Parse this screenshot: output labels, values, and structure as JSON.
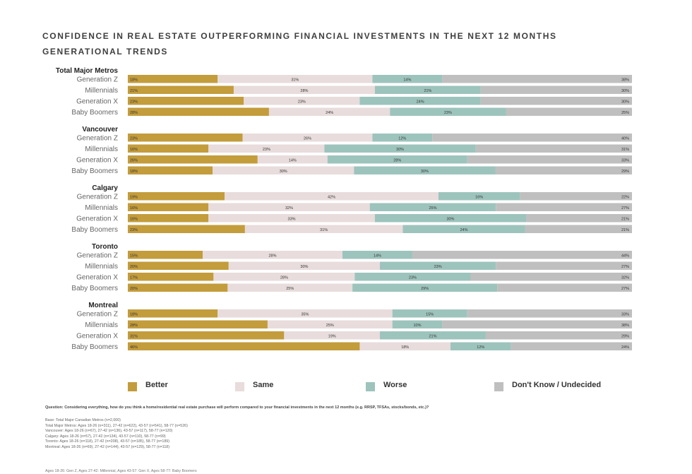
{
  "title": {
    "line1": "CONFIDENCE IN REAL ESTATE OUTPERFORMING FINANCIAL INVESTMENTS IN THE NEXT 12 MONTHS",
    "line2": "GENERATIONAL TRENDS"
  },
  "colors": {
    "better": "#c39c3c",
    "same": "#e8dcdc",
    "worse": "#9dc4bc",
    "dont_know": "#bfbfbf"
  },
  "legend": {
    "better": "Better",
    "same": "Same",
    "worse": "Worse",
    "dont_know": "Don't Know / Undecided"
  },
  "chart_data": {
    "type": "bar",
    "orientation": "horizontal",
    "stacked": true,
    "unit": "%",
    "series_names": [
      "Better",
      "Same",
      "Worse",
      "Don't Know / Undecided"
    ],
    "groups": [
      {
        "name": "Total Major Metros",
        "rows": [
          {
            "label": "Generation Z",
            "values": [
              18,
              31,
              14,
              38
            ]
          },
          {
            "label": "Millennials",
            "values": [
              21,
              28,
              21,
              30
            ]
          },
          {
            "label": "Generation X",
            "values": [
              23,
              23,
              24,
              30
            ]
          },
          {
            "label": "Baby Boomers",
            "values": [
              28,
              24,
              23,
              25
            ]
          }
        ]
      },
      {
        "name": "Vancouver",
        "rows": [
          {
            "label": "Generation Z",
            "values": [
              23,
              26,
              12,
              40
            ]
          },
          {
            "label": "Millennials",
            "values": [
              16,
              23,
              30,
              31
            ]
          },
          {
            "label": "Generation X",
            "values": [
              26,
              14,
              28,
              33
            ]
          },
          {
            "label": "Baby Boomers",
            "values": [
              18,
              30,
              30,
              29
            ]
          }
        ]
      },
      {
        "name": "Calgary",
        "rows": [
          {
            "label": "Generation Z",
            "values": [
              19,
              42,
              16,
              22
            ]
          },
          {
            "label": "Millennials",
            "values": [
              16,
              32,
              25,
              27
            ]
          },
          {
            "label": "Generation X",
            "values": [
              16,
              33,
              30,
              21
            ]
          },
          {
            "label": "Baby Boomers",
            "values": [
              23,
              31,
              24,
              21
            ]
          }
        ]
      },
      {
        "name": "Toronto",
        "rows": [
          {
            "label": "Generation Z",
            "values": [
              15,
              28,
              14,
              44
            ]
          },
          {
            "label": "Millennials",
            "values": [
              20,
              30,
              23,
              27
            ]
          },
          {
            "label": "Generation X",
            "values": [
              17,
              28,
              23,
              32
            ]
          },
          {
            "label": "Baby Boomers",
            "values": [
              20,
              25,
              29,
              27
            ]
          }
        ]
      },
      {
        "name": "Montreal",
        "rows": [
          {
            "label": "Generation Z",
            "values": [
              18,
              35,
              15,
              33
            ]
          },
          {
            "label": "Millennials",
            "values": [
              28,
              25,
              10,
              38
            ]
          },
          {
            "label": "Generation X",
            "values": [
              31,
              19,
              21,
              29
            ]
          },
          {
            "label": "Baby Boomers",
            "values": [
              46,
              18,
              12,
              24
            ]
          }
        ]
      }
    ]
  },
  "footnotes": {
    "question": "Question: Considering everything, how do you think a home/residential real estate purchase will perform compared to your financial investments in the next 12 months (e.g. RRSP, TFSAs, stocks/bonds, etc.)?",
    "base_lines": [
      "Base: Total Major Canadian Metros (n=2,000)",
      "Total Major Metros: Ages 18-26 (n=311), 27-42 (n=622), 43-57 (n=541), 58-77 (n=526)",
      "Vancouver: Ages 18-26 (n=67), 27-42 (n=136), 43-57 (n=117), 58-77 (n=120)",
      "Calgary: Ages 18-26 (n=57), 27-42 (n=134), 43-57 (n=110), 58-77 (n=99)",
      "Toronto: Ages 18-26 (n=118), 27-42 (n=208), 43-57 (n=185), 58-77 (n=189)",
      "Montreal: Ages 18-26 (n=69), 27-42 (n=144), 43-57 (n=129), 58-77 (n=118)"
    ],
    "ages": "Ages 18-26: Gen Z, Ages 27-42: Millennial, Ages 43-57: Gen X, Ages 58-77: Baby Boomers"
  }
}
